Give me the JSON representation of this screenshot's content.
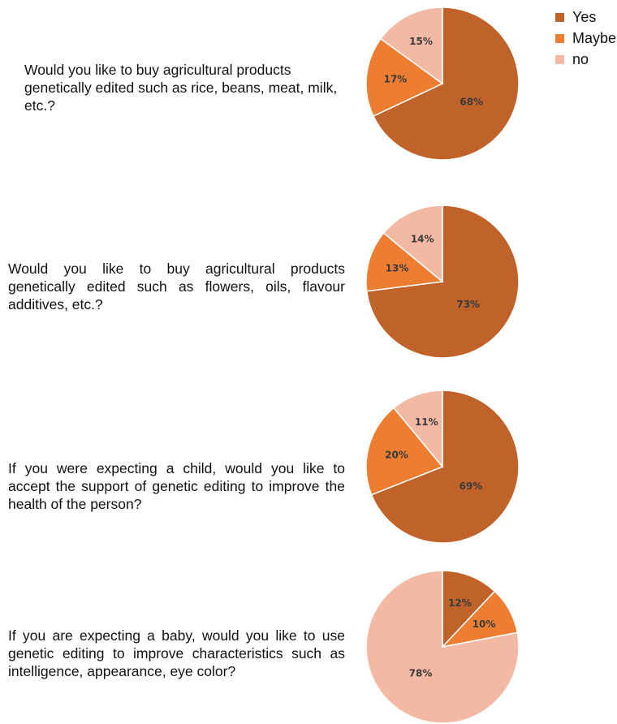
{
  "legend": [
    {
      "label": "Yes",
      "color": "#c0632a"
    },
    {
      "label": "Maybe",
      "color": "#ed7d31"
    },
    {
      "label": "no",
      "color": "#f4b9a4"
    }
  ],
  "chart_data": [
    {
      "type": "pie",
      "question": "Would you like to buy agricultural products genetically edited such as rice, beans, meat, milk, etc.?",
      "categories": [
        "Yes",
        "Maybe",
        "no"
      ],
      "values": [
        68,
        17,
        15
      ],
      "labels": [
        "68%",
        "17%",
        "15%"
      ]
    },
    {
      "type": "pie",
      "question": "Would you like to buy agricultural products genetically edited such as flowers, oils, flavour additives, etc.?",
      "categories": [
        "Yes",
        "Maybe",
        "no"
      ],
      "values": [
        73,
        13,
        14
      ],
      "labels": [
        "73%",
        "13%",
        "14%"
      ]
    },
    {
      "type": "pie",
      "question": "If you were expecting a child, would you like to accept the support of genetic editing to improve the health of the person?",
      "categories": [
        "Yes",
        "Maybe",
        "no"
      ],
      "values": [
        69,
        20,
        11
      ],
      "labels": [
        "69%",
        "20%",
        "11%"
      ]
    },
    {
      "type": "pie",
      "question": "If you are expecting a baby, would you like to use genetic editing to improve characteristics such as intelligence, appearance, eye color?",
      "categories": [
        "Yes",
        "Maybe",
        "no"
      ],
      "values": [
        12,
        10,
        78
      ],
      "labels": [
        "12%",
        "10%",
        "78%"
      ]
    }
  ]
}
